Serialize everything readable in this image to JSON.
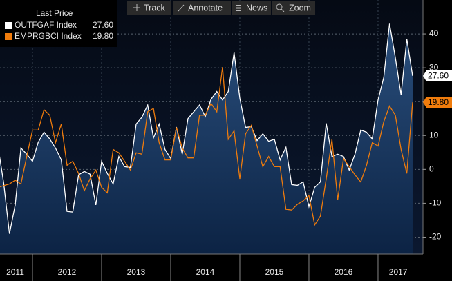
{
  "chart_data": {
    "type": "line",
    "legend_title": "Last Price",
    "legend": "upper left",
    "toolbar": [
      "Track",
      "Annotate",
      "News",
      "Zoom"
    ],
    "categories": [
      "2011",
      null,
      null,
      null,
      null,
      null,
      "2012",
      null,
      null,
      null,
      null,
      null,
      null,
      null,
      null,
      null,
      null,
      null,
      "2013",
      null,
      null,
      null,
      null,
      null,
      null,
      null,
      null,
      null,
      null,
      null,
      "2014",
      null,
      null,
      null,
      null,
      null,
      null,
      null,
      null,
      null,
      null,
      null,
      "2015",
      null,
      null,
      null,
      null,
      null,
      null,
      null,
      null,
      null,
      null,
      null,
      "2016",
      null,
      null,
      null,
      null,
      null,
      null,
      null,
      null,
      null,
      null,
      null,
      "2017",
      null,
      null,
      null,
      null,
      null,
      null
    ],
    "series": [
      {
        "name": "OUTFGAF Index",
        "color": "#ffffff",
        "area": true,
        "values": [
          7,
          -4,
          -19,
          -10.5,
          6.3,
          4.5,
          2.4,
          8,
          11,
          9,
          6.3,
          2.8,
          -12.4,
          -12.6,
          -1.6,
          -0.6,
          -1.4,
          -10.5,
          2.4,
          -1.2,
          -4.3,
          3.8,
          0.8,
          0.6,
          13.4,
          15.4,
          19,
          9.3,
          13.4,
          5.9,
          3.2,
          12.5,
          4.5,
          15,
          17,
          19,
          15.6,
          20.7,
          23,
          20.5,
          23,
          34.5,
          21,
          12.4,
          12.6,
          8.5,
          10.5,
          8.3,
          8.9,
          2.8,
          6.5,
          -4.5,
          -4.7,
          -3.7,
          -11,
          -5.3,
          -3.7,
          13.6,
          3.8,
          4.5,
          3.8,
          -0.2,
          4.5,
          11.6,
          11,
          9,
          20.5,
          27.2,
          43,
          33,
          22,
          38.5,
          27.6
        ],
        "value_labels": [
          null,
          null,
          null,
          null,
          null,
          null,
          null,
          null,
          null,
          null,
          null,
          null,
          null,
          null,
          null,
          null,
          null,
          null,
          null,
          null,
          null,
          null,
          null,
          null,
          null,
          null,
          null,
          null,
          null,
          null,
          null,
          null,
          null,
          null,
          null,
          null,
          null,
          null,
          null,
          null,
          null,
          null,
          null,
          null,
          null,
          null,
          null,
          null,
          null,
          null,
          null,
          null,
          null,
          null,
          null,
          null,
          null,
          null,
          null,
          null,
          null,
          null,
          null,
          null,
          null,
          null,
          null,
          null,
          null,
          null,
          null,
          null,
          "27.60"
        ]
      },
      {
        "name": "EMPRGBCI Index",
        "color": "#f07c0c",
        "area": false,
        "values": [
          -5.3,
          -4.8,
          -4.3,
          -3.2,
          -4.3,
          3.8,
          11.6,
          11.6,
          17.6,
          16,
          7.9,
          13.4,
          1.2,
          2.4,
          -1.2,
          -6.3,
          -2.8,
          -0.2,
          -5.3,
          -6.9,
          5.9,
          4.9,
          2.4,
          -0.2,
          4.9,
          4.5,
          17,
          18,
          7.9,
          2.8,
          2.8,
          12.4,
          6.3,
          3.4,
          3.4,
          16,
          16,
          19.5,
          17,
          30.2,
          8.9,
          11.4,
          -2.8,
          10.5,
          13,
          6.9,
          0.8,
          3.8,
          0.8,
          0.8,
          -11.8,
          -12,
          -10.3,
          -9.3,
          -7.7,
          -16.4,
          -13.8,
          -2.8,
          8.9,
          -9,
          3.2,
          0.8,
          -1.6,
          -3.7,
          1.2,
          7.9,
          6.9,
          14.1,
          18.7,
          16,
          5.9,
          -1.2,
          19.8
        ],
        "value_labels": [
          null,
          null,
          null,
          null,
          null,
          null,
          null,
          null,
          null,
          null,
          null,
          null,
          null,
          null,
          null,
          null,
          null,
          null,
          null,
          null,
          null,
          null,
          null,
          null,
          null,
          null,
          null,
          null,
          null,
          null,
          null,
          null,
          null,
          null,
          null,
          null,
          null,
          null,
          null,
          null,
          null,
          null,
          null,
          null,
          null,
          null,
          null,
          null,
          null,
          null,
          null,
          null,
          null,
          null,
          null,
          null,
          null,
          null,
          null,
          null,
          null,
          null,
          null,
          null,
          null,
          null,
          null,
          null,
          null,
          null,
          null,
          null,
          "19.80"
        ]
      }
    ],
    "ylim": [
      -25,
      50
    ],
    "yticks": [
      -20,
      -10,
      0,
      10,
      20,
      30,
      40
    ],
    "grid": true
  }
}
